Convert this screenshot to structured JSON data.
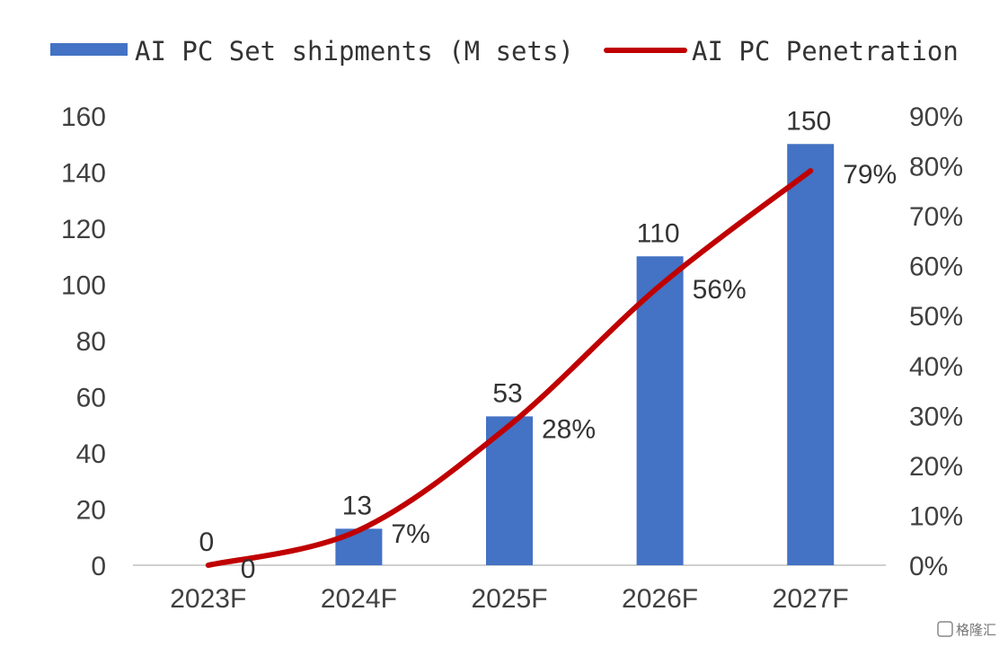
{
  "chart_data": {
    "type": "bar",
    "categories": [
      "2023F",
      "2024F",
      "2025F",
      "2026F",
      "2027F"
    ],
    "series": [
      {
        "name": "AI PC Set shipments (M sets)",
        "type": "bar",
        "axis": "left",
        "values": [
          0,
          13,
          53,
          110,
          150
        ],
        "labels": [
          "0",
          "13",
          "53",
          "110",
          "150"
        ],
        "color": "#4472C4"
      },
      {
        "name": "AI PC Penetration",
        "type": "line",
        "axis": "right",
        "values": [
          0,
          7,
          28,
          56,
          79
        ],
        "labels": [
          "0",
          "7%",
          "28%",
          "56%",
          "79%"
        ],
        "color": "#C00000"
      }
    ],
    "y_left": {
      "lim": [
        0,
        160
      ],
      "ticks": [
        "0",
        "20",
        "40",
        "60",
        "80",
        "100",
        "120",
        "140",
        "160"
      ]
    },
    "y_right": {
      "lim": [
        0,
        90
      ],
      "ticks": [
        "0%",
        "10%",
        "20%",
        "30%",
        "40%",
        "50%",
        "60%",
        "70%",
        "80%",
        "90%"
      ]
    },
    "legend_position": "top",
    "grid": false
  },
  "watermark": {
    "text": "格隆汇"
  }
}
